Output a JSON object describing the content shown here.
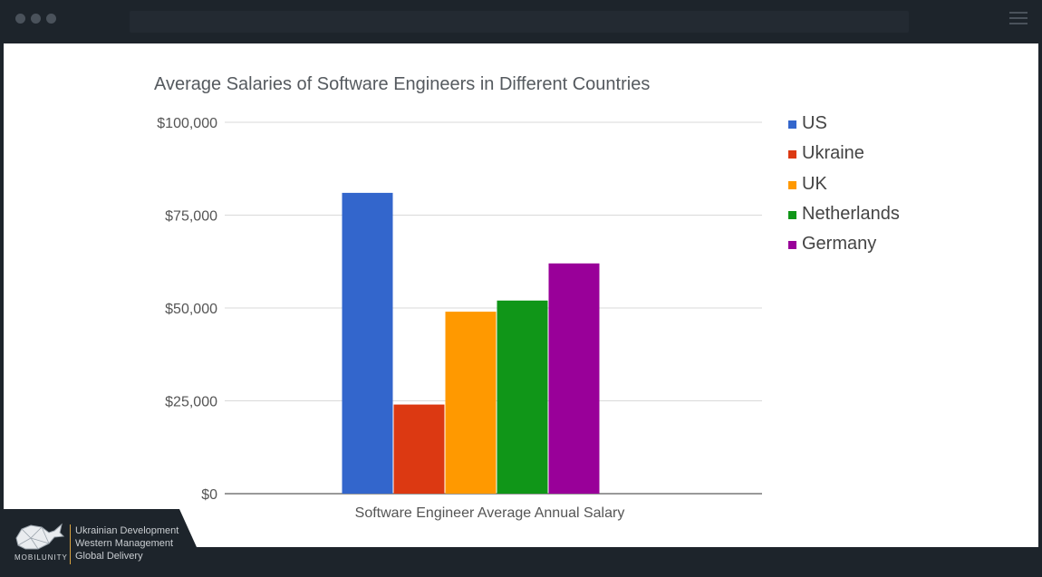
{
  "brand": {
    "name": "MOBILUNITY",
    "tagline": [
      "Ukrainian Development",
      "Western Management",
      "Global Delivery"
    ]
  },
  "chart_data": {
    "type": "bar",
    "title": "Average Salaries of Software Engineers in Different Countries",
    "categories": [
      "Software Engineer Average Annual Salary"
    ],
    "xlabel": "Software Engineer Average Annual Salary",
    "ylabel": "",
    "ylim": [
      0,
      100000
    ],
    "y_ticks": [
      0,
      25000,
      50000,
      75000,
      100000
    ],
    "y_tick_labels": [
      "$0",
      "$25,000",
      "$50,000",
      "$75,000",
      "$100,000"
    ],
    "grid": true,
    "legend_position": "right",
    "series": [
      {
        "name": "US",
        "values": [
          81000
        ],
        "color": "#3366cc"
      },
      {
        "name": "Ukraine",
        "values": [
          24000
        ],
        "color": "#dc3912"
      },
      {
        "name": "UK",
        "values": [
          49000
        ],
        "color": "#ff9900"
      },
      {
        "name": "Netherlands",
        "values": [
          52000
        ],
        "color": "#109618"
      },
      {
        "name": "Germany",
        "values": [
          62000
        ],
        "color": "#990099"
      }
    ]
  }
}
